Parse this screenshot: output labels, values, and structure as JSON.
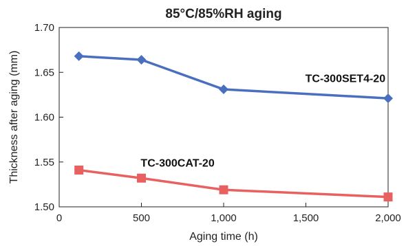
{
  "chart_data": {
    "type": "line",
    "title": "85°C/85%RH aging",
    "xlabel": "Aging time (h)",
    "ylabel": "Thickness after aging (mm)",
    "xlim": [
      0,
      2000
    ],
    "ylim": [
      1.5,
      1.7
    ],
    "x_ticks": [
      0,
      500,
      1000,
      1500,
      2000
    ],
    "x_tick_labels": [
      "0",
      "500",
      "1,000",
      "1,500",
      "2,000"
    ],
    "y_ticks": [
      1.5,
      1.55,
      1.6,
      1.65,
      1.7
    ],
    "y_tick_labels": [
      "1.50",
      "1.55",
      "1.60",
      "1.65",
      "1.70"
    ],
    "grid": false,
    "series": [
      {
        "name": "TC-300SET4-20",
        "color": "#4a6fbf",
        "marker": "diamond",
        "x": [
          120,
          500,
          1000,
          2000
        ],
        "y": [
          1.668,
          1.664,
          1.631,
          1.621
        ]
      },
      {
        "name": "TC-300CAT-20",
        "color": "#e8605f",
        "marker": "square",
        "x": [
          120,
          500,
          1000,
          2000
        ],
        "y": [
          1.541,
          1.532,
          1.519,
          1.511
        ]
      }
    ]
  }
}
